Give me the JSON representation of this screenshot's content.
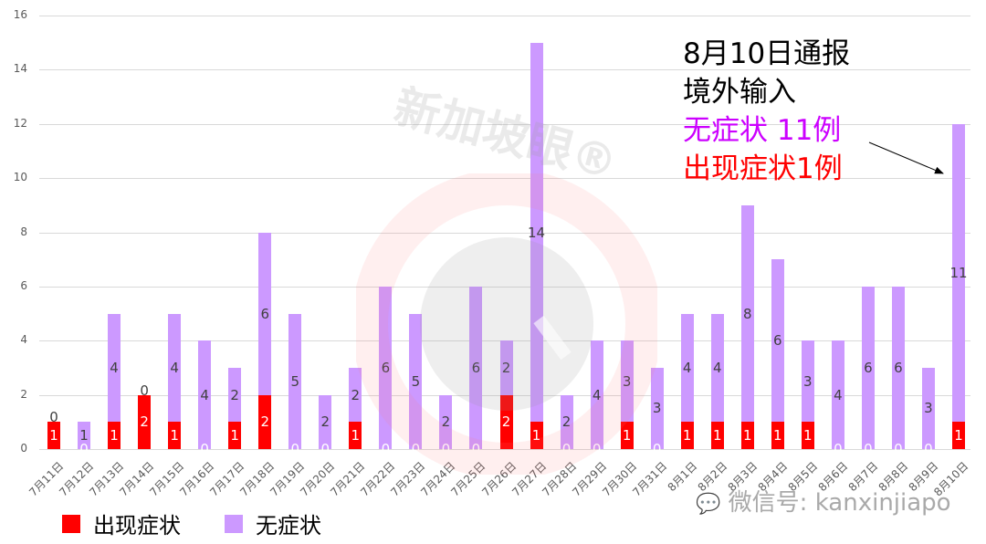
{
  "chart_data": {
    "type": "bar",
    "stacked": true,
    "title": "",
    "xlabel": "",
    "ylabel": "",
    "ylim": [
      0,
      16
    ],
    "yticks": [
      0,
      2,
      4,
      6,
      8,
      10,
      12,
      14,
      16
    ],
    "grid": true,
    "legend_position": "bottom-left",
    "categories": [
      "7月11日",
      "7月12日",
      "7月13日",
      "7月14日",
      "7月15日",
      "7月16日",
      "7月17日",
      "7月18日",
      "7月19日",
      "7月20日",
      "7月21日",
      "7月22日",
      "7月23日",
      "7月24日",
      "7月25日",
      "7月26日",
      "7月27日",
      "7月28日",
      "7月29日",
      "7月30日",
      "7月31日",
      "8月1日",
      "8月2日",
      "8月3日",
      "8月4日",
      "8月5日",
      "8月6日",
      "8月7日",
      "8月8日",
      "8月9日",
      "8月10日"
    ],
    "series": [
      {
        "name": "出现症状",
        "color": "#ff0000",
        "values": [
          1,
          0,
          1,
          2,
          1,
          0,
          1,
          2,
          0,
          0,
          1,
          0,
          0,
          0,
          0,
          2,
          1,
          0,
          0,
          1,
          0,
          1,
          1,
          1,
          1,
          1,
          0,
          0,
          0,
          0,
          1
        ]
      },
      {
        "name": "无症状",
        "color": "#cc99ff",
        "values": [
          0,
          1,
          4,
          0,
          4,
          4,
          2,
          6,
          5,
          2,
          2,
          6,
          5,
          2,
          6,
          2,
          14,
          2,
          4,
          3,
          3,
          4,
          4,
          8,
          6,
          3,
          4,
          6,
          6,
          3,
          11
        ]
      }
    ],
    "annotations": [
      {
        "text": "8月10日通报",
        "color": "#000000"
      },
      {
        "text": "境外输入",
        "color": "#000000"
      },
      {
        "text": "无症状 11例",
        "color": "#cc00ff"
      },
      {
        "text": "出现症状1例",
        "color": "#ff0000"
      }
    ]
  },
  "legend": {
    "items": [
      {
        "label": "出现症状",
        "color": "#ff0000"
      },
      {
        "label": "无症状",
        "color": "#cc99ff"
      }
    ]
  },
  "annotation": {
    "line1": "8月10日通报",
    "line2": "境外输入",
    "line3": "无症状 11例",
    "line4": "出现症状1例"
  },
  "watermark": {
    "brand": "新加坡眼®",
    "wechat": "微信号: kanxinjiapo"
  }
}
